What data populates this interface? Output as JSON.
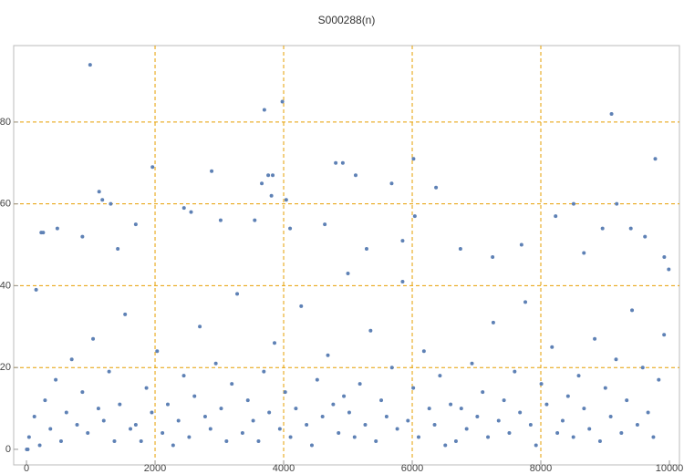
{
  "chart_data": {
    "type": "scatter",
    "title": "S000288(n)",
    "x": [
      40,
      123,
      206,
      289,
      372,
      455,
      538,
      621,
      704,
      787,
      870,
      953,
      1036,
      1119,
      1202,
      1285,
      1368,
      1451,
      1534,
      1617,
      1700,
      1783,
      1866,
      1949,
      2032,
      2115,
      2198,
      2281,
      2364,
      2447,
      2530,
      2613,
      2696,
      2779,
      2862,
      2945,
      3028,
      3111,
      3194,
      3277,
      3360,
      3443,
      3526,
      3609,
      3692,
      3775,
      3858,
      3941,
      4024,
      4107,
      4190,
      4273,
      4356,
      4439,
      4522,
      4605,
      4688,
      4771,
      4854,
      4937,
      5020,
      5103,
      5186,
      5269,
      5352,
      5435,
      5518,
      5601,
      5684,
      5767,
      5850,
      5933,
      6016,
      6099,
      6182,
      6265,
      6348,
      6431,
      6514,
      6597,
      6680,
      6763,
      6846,
      6929,
      7012,
      7095,
      7178,
      7261,
      7344,
      7427,
      7510,
      7593,
      7676,
      7759,
      7842,
      7925,
      8008,
      8091,
      8174,
      8257,
      8340,
      8423,
      8506,
      8589,
      8672,
      8755,
      8838,
      8921,
      9004,
      9087,
      9170,
      9253,
      9336,
      9419,
      9502,
      9585,
      9668,
      9751,
      9834,
      9917,
      990,
      3700,
      3980,
      9100,
      9780,
      6020,
      1960,
      2880,
      4810,
      4920,
      5120,
      5680,
      3760,
      3830,
      3660,
      3810,
      1130,
      1180,
      1310,
      6370,
      9180,
      8510,
      4040,
      6040,
      230,
      260,
      480,
      870,
      1420,
      1700,
      2450,
      2560,
      3020,
      3550,
      4100,
      4640,
      5290,
      5850,
      6750,
      7250,
      7700,
      8230,
      8670,
      8960,
      9400,
      9620,
      9920,
      9990,
      150,
      5000,
      5,
      20
    ],
    "values": [
      3,
      8,
      1,
      12,
      5,
      17,
      2,
      9,
      22,
      6,
      14,
      4,
      27,
      10,
      7,
      19,
      2,
      11,
      33,
      5,
      6,
      2,
      15,
      9,
      24,
      4,
      11,
      1,
      7,
      18,
      3,
      13,
      30,
      8,
      5,
      21,
      10,
      2,
      16,
      38,
      4,
      12,
      7,
      2,
      19,
      9,
      26,
      5,
      14,
      3,
      10,
      35,
      6,
      1,
      17,
      8,
      23,
      11,
      4,
      13,
      9,
      3,
      16,
      6,
      29,
      2,
      12,
      8,
      20,
      5,
      41,
      7,
      15,
      3,
      24,
      10,
      6,
      18,
      1,
      11,
      2,
      10,
      5,
      21,
      8,
      14,
      3,
      31,
      7,
      12,
      4,
      19,
      9,
      36,
      6,
      1,
      16,
      11,
      25,
      4,
      7,
      13,
      3,
      18,
      10,
      5,
      27,
      2,
      15,
      8,
      22,
      4,
      12,
      34,
      6,
      20,
      9,
      3,
      17,
      28,
      94,
      83,
      85,
      82,
      71,
      71,
      69,
      68,
      70,
      70,
      67,
      65,
      67,
      67,
      65,
      62,
      63,
      61,
      60,
      64,
      60,
      60,
      61,
      57,
      53,
      53,
      54,
      52,
      49,
      55,
      59,
      58,
      56,
      56,
      54,
      55,
      49,
      51,
      49,
      47,
      50,
      57,
      48,
      54,
      54,
      52,
      47,
      44,
      39,
      43,
      0,
      0
    ],
    "color": "#5e81b5",
    "grid_color": "#e69f00",
    "xlim": [
      -199,
      10156
    ],
    "ylim": [
      -3.8,
      98.7
    ],
    "xticks": [
      0,
      2000,
      4000,
      6000,
      8000,
      10000
    ],
    "yticks": [
      0,
      20,
      40,
      60,
      80
    ],
    "xgrid": [
      2000,
      4000,
      6000,
      8000
    ],
    "ygrid": [
      20,
      40,
      60,
      80
    ]
  }
}
